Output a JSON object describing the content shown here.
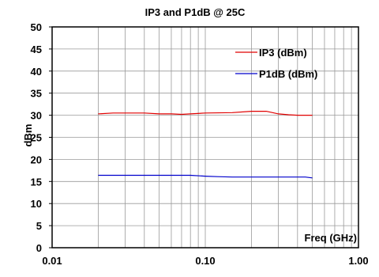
{
  "chart_data": {
    "type": "line",
    "title": "IP3 and P1dB @ 25C",
    "xlabel": "Freq (GHz)",
    "ylabel": "dBm",
    "x_scale": "log",
    "xlim": [
      0.01,
      1.0
    ],
    "ylim": [
      0,
      50
    ],
    "x_ticks": [
      0.01,
      0.1,
      1.0
    ],
    "x_tick_labels": [
      "0.01",
      "0.10",
      "1.00"
    ],
    "y_ticks": [
      0,
      5,
      10,
      15,
      20,
      25,
      30,
      35,
      40,
      45,
      50
    ],
    "y_tick_labels": [
      "0",
      "5",
      "10",
      "15",
      "20",
      "25",
      "30",
      "35",
      "40",
      "45",
      "50"
    ],
    "grid": true,
    "legend_position": "top-right",
    "series": [
      {
        "name": "IP3 (dBm)",
        "color": "#e00000",
        "x": [
          0.02,
          0.025,
          0.03,
          0.04,
          0.05,
          0.06,
          0.07,
          0.08,
          0.1,
          0.15,
          0.2,
          0.25,
          0.3,
          0.35,
          0.4,
          0.5
        ],
        "y": [
          30.3,
          30.5,
          30.5,
          30.5,
          30.3,
          30.3,
          30.2,
          30.3,
          30.5,
          30.6,
          30.9,
          30.9,
          30.3,
          30.1,
          30.0,
          30.0
        ]
      },
      {
        "name": "P1dB (dBm)",
        "color": "#0000cc",
        "x": [
          0.02,
          0.03,
          0.05,
          0.08,
          0.1,
          0.12,
          0.15,
          0.2,
          0.3,
          0.4,
          0.45,
          0.5
        ],
        "y": [
          16.4,
          16.4,
          16.4,
          16.4,
          16.2,
          16.1,
          16.0,
          16.0,
          16.0,
          16.0,
          16.0,
          15.8
        ]
      }
    ]
  }
}
